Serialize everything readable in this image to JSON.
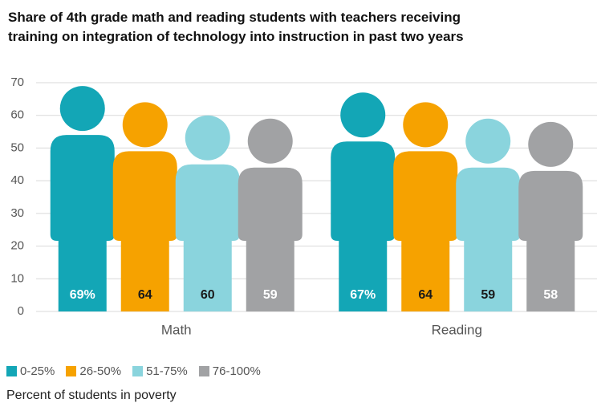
{
  "chart_data": {
    "type": "pictogram-bar",
    "title": "Share of 4th grade math and reading students with teachers receiving\ntraining on integration of technology into instruction in past two years",
    "categories": [
      "Math",
      "Reading"
    ],
    "series": [
      {
        "name": "0-25%",
        "color": "#13a6b6",
        "label_color": "#ffffff",
        "values": [
          69,
          67
        ],
        "value_labels": [
          "69%",
          "67%"
        ]
      },
      {
        "name": "26-50%",
        "color": "#f6a200",
        "label_color": "#1a1a1a",
        "values": [
          64,
          64
        ],
        "value_labels": [
          "64",
          "64"
        ]
      },
      {
        "name": "51-75%",
        "color": "#8ad4dd",
        "label_color": "#1a1a1a",
        "values": [
          60,
          59
        ],
        "value_labels": [
          "60",
          "59"
        ]
      },
      {
        "name": "76-100%",
        "color": "#a1a2a4",
        "label_color": "#ffffff",
        "values": [
          59,
          58
        ],
        "value_labels": [
          "59",
          "58"
        ]
      }
    ],
    "legend_title": "Percent of students in poverty",
    "ylim": [
      0,
      70
    ],
    "yticks": [
      0,
      10,
      20,
      30,
      40,
      50,
      60,
      70
    ],
    "grid": true
  }
}
